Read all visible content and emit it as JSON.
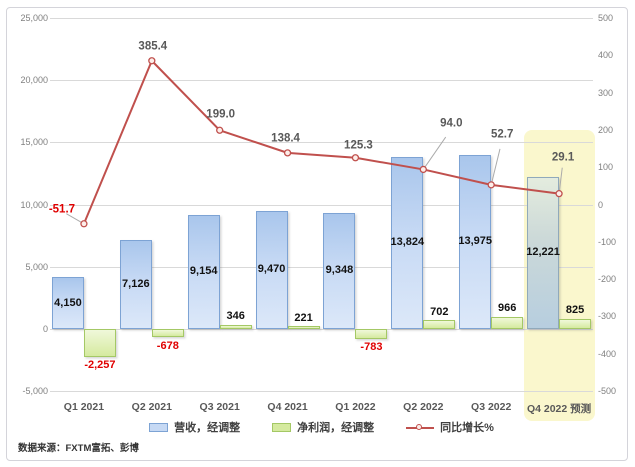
{
  "source_note": "数据来源：FXTM富拓、彭博",
  "chart_data": {
    "type": "combo",
    "categories": [
      "Q1 2021",
      "Q2 2021",
      "Q3 2021",
      "Q4 2021",
      "Q1 2022",
      "Q2 2022",
      "Q3 2022",
      "Q4 2022 预测"
    ],
    "series": [
      {
        "name": "营收，经调整",
        "type": "bar",
        "axis": "left",
        "role": "revenue",
        "values": [
          4150,
          7126,
          9154,
          9470,
          9348,
          13824,
          13975,
          12221
        ],
        "labels": [
          "4,150",
          "7,126",
          "9,154",
          "9,470",
          "9,348",
          "13,824",
          "13,975",
          "12,221"
        ]
      },
      {
        "name": "净利润，经调整",
        "type": "bar",
        "axis": "left",
        "role": "profit",
        "values": [
          -2257,
          -678,
          346,
          221,
          -783,
          702,
          966,
          825
        ],
        "labels": [
          "-2,257",
          "-678",
          "346",
          "221",
          "-783",
          "702",
          "966",
          "825"
        ]
      },
      {
        "name": "同比增长%",
        "type": "line",
        "axis": "right",
        "role": "growth",
        "values": [
          -51.7,
          385.4,
          199.0,
          138.4,
          125.3,
          94.0,
          52.7,
          29.1
        ],
        "labels": [
          "-51.7",
          "385.4",
          "199.0",
          "138.4",
          "125.3",
          "94.0",
          "52.7",
          "29.1"
        ],
        "label_offsets": [
          [
            -22,
            -14
          ],
          [
            1,
            -14
          ],
          [
            1,
            -15
          ],
          [
            -2,
            -14
          ],
          [
            3,
            -12
          ],
          [
            28,
            -45
          ],
          [
            11,
            -50
          ],
          [
            4,
            -36
          ]
        ],
        "leaders": [
          true,
          false,
          false,
          false,
          false,
          true,
          true,
          true
        ]
      }
    ],
    "left_axis": {
      "min": -5000,
      "max": 25000,
      "step": 5000,
      "ticks": [
        "25,000",
        "20,000",
        "15,000",
        "10,000",
        "5,000",
        "0",
        "-5,000"
      ]
    },
    "right_axis": {
      "min": -500,
      "max": 500,
      "step": 100,
      "ticks": [
        "500",
        "400",
        "300",
        "200",
        "100",
        "0",
        "-100",
        "-200",
        "-300",
        "-400",
        "-500"
      ]
    },
    "highlight": {
      "category_index": 7,
      "color": "#faf7cd",
      "note": "预测"
    },
    "grid": true,
    "legend_position": "bottom",
    "colors": {
      "revenue_fill": "#c6d9f4",
      "revenue_border": "#7da3d4",
      "profit_fill": "#d5ea9f",
      "profit_border": "#a4c865",
      "growth_line": "#c0504d",
      "negative_label": "#e00000",
      "forecast_band": "#faf7cd",
      "gridline": "#d9d9d9"
    }
  }
}
